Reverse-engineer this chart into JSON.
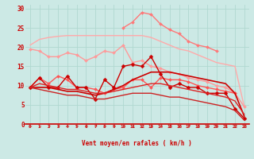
{
  "background_color": "#cce9e5",
  "grid_color": "#b0d8d0",
  "xlabel": "Vent moyen/en rafales ( km/h )",
  "xlabel_color": "#cc0000",
  "tick_color": "#cc0000",
  "x_ticks": [
    0,
    1,
    2,
    3,
    4,
    5,
    6,
    7,
    8,
    9,
    10,
    11,
    12,
    13,
    14,
    15,
    16,
    17,
    18,
    19,
    20,
    21,
    22,
    23
  ],
  "ylim": [
    0,
    31
  ],
  "yticks": [
    0,
    5,
    10,
    15,
    20,
    25,
    30
  ],
  "series": [
    {
      "name": "smooth_upper",
      "color": "#ffaaaa",
      "linewidth": 1.0,
      "marker": null,
      "values": [
        20.5,
        22.0,
        22.5,
        22.8,
        23.0,
        23.0,
        23.0,
        23.0,
        23.0,
        23.0,
        23.0,
        23.0,
        23.0,
        22.5,
        21.5,
        20.5,
        19.5,
        19.0,
        18.0,
        17.0,
        16.0,
        15.5,
        15.0,
        4.5
      ]
    },
    {
      "name": "zigzag_pink",
      "color": "#ff9999",
      "linewidth": 1.0,
      "marker": "D",
      "markersize": 2.0,
      "values": [
        19.5,
        19.0,
        17.5,
        17.5,
        18.5,
        18.0,
        16.5,
        17.5,
        19.0,
        18.5,
        20.5,
        16.0,
        16.5,
        15.0,
        14.5,
        13.5,
        13.0,
        12.0,
        11.5,
        11.0,
        10.0,
        9.5,
        8.0,
        4.5
      ]
    },
    {
      "name": "peak_line",
      "color": "#ff7777",
      "linewidth": 1.0,
      "marker": "D",
      "markersize": 2.0,
      "values": [
        null,
        null,
        null,
        null,
        null,
        null,
        null,
        null,
        null,
        null,
        25.0,
        26.5,
        29.0,
        28.5,
        26.0,
        24.5,
        23.5,
        21.5,
        20.5,
        20.0,
        19.0,
        null,
        null,
        null
      ]
    },
    {
      "name": "mid_zigzag",
      "color": "#ff5555",
      "linewidth": 1.0,
      "marker": "D",
      "markersize": 2.0,
      "values": [
        9.5,
        12.0,
        10.5,
        12.5,
        11.5,
        9.5,
        9.5,
        9.0,
        8.0,
        9.0,
        9.5,
        11.5,
        11.5,
        9.5,
        12.0,
        11.5,
        11.5,
        11.0,
        10.0,
        9.5,
        9.0,
        8.5,
        8.0,
        null
      ]
    },
    {
      "name": "dark_zigzag",
      "color": "#cc0000",
      "linewidth": 1.0,
      "marker": "D",
      "markersize": 2.5,
      "values": [
        9.5,
        12.0,
        9.5,
        9.5,
        12.5,
        9.5,
        9.5,
        6.5,
        11.5,
        9.5,
        15.0,
        15.5,
        15.0,
        17.5,
        13.0,
        9.5,
        10.5,
        9.5,
        9.5,
        8.0,
        8.0,
        8.0,
        4.0,
        1.5
      ]
    },
    {
      "name": "smooth_trend1",
      "color": "#cc0000",
      "linewidth": 1.2,
      "marker": null,
      "values": [
        9.5,
        9.5,
        9.5,
        9.0,
        8.5,
        8.5,
        8.0,
        7.5,
        8.0,
        9.0,
        10.0,
        11.5,
        12.5,
        13.5,
        13.5,
        13.5,
        13.0,
        12.5,
        12.0,
        11.5,
        11.0,
        10.5,
        8.0,
        2.0
      ]
    },
    {
      "name": "smooth_trend2",
      "color": "#dd2222",
      "linewidth": 1.0,
      "marker": null,
      "values": [
        9.5,
        10.5,
        10.0,
        9.5,
        9.0,
        9.0,
        8.5,
        8.0,
        8.0,
        8.5,
        9.0,
        9.5,
        10.0,
        10.5,
        10.5,
        10.0,
        9.5,
        9.0,
        8.5,
        8.0,
        7.5,
        7.0,
        6.0,
        2.5
      ]
    },
    {
      "name": "lower_line",
      "color": "#cc2222",
      "linewidth": 1.0,
      "marker": null,
      "values": [
        9.5,
        9.0,
        8.5,
        8.0,
        7.5,
        7.5,
        7.0,
        6.5,
        6.5,
        7.0,
        7.5,
        8.0,
        8.0,
        8.0,
        7.5,
        7.0,
        7.0,
        6.5,
        6.0,
        5.5,
        5.0,
        4.5,
        3.5,
        1.0
      ]
    }
  ],
  "arrow_color": "#cc3333"
}
